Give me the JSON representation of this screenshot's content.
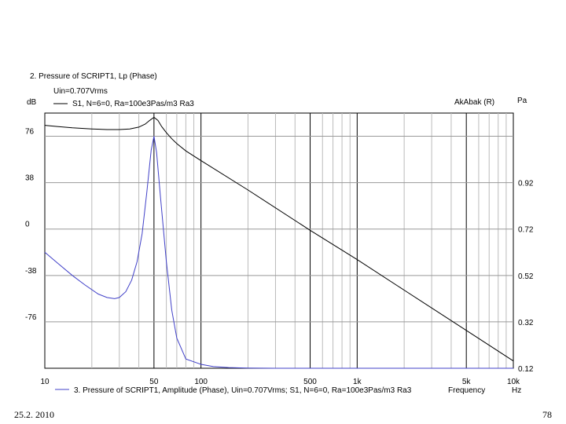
{
  "chart_data": {
    "type": "line",
    "title": "2. Pressure of SCRIPT1, Lp (Phase)",
    "subtitle": "Uin=0.707Vrms",
    "software_label": "AkAbak (R)",
    "xlabel": "Frequency",
    "xunit": "Hz",
    "x_scale": "log",
    "xlim": [
      10,
      10000
    ],
    "x_major_ticks": [
      {
        "value": 10,
        "label": "10"
      },
      {
        "value": 50,
        "label": "50"
      },
      {
        "value": 100,
        "label": "100"
      },
      {
        "value": 500,
        "label": "500"
      },
      {
        "value": 1000,
        "label": "1k"
      },
      {
        "value": 5000,
        "label": "5k"
      },
      {
        "value": 10000,
        "label": "10k"
      }
    ],
    "y_left": {
      "unit": "dB",
      "lim": [
        -114,
        95
      ],
      "ticks": [
        "76",
        "38",
        "0",
        "-38",
        "-76"
      ],
      "tick_values": [
        76,
        38,
        0,
        -38,
        -76
      ]
    },
    "y_right": {
      "unit": "Pa",
      "lim": [
        0.12,
        1.22
      ],
      "ticks": [
        "0.92",
        "0.72",
        "0.52",
        "0.32",
        "0.12"
      ],
      "tick_values": [
        0.92,
        0.72,
        0.52,
        0.32,
        0.12
      ]
    },
    "grid": true,
    "series": [
      {
        "name": "S1, N=6=0, Ra=100e3Pas/m3 Ra3",
        "axis": "left",
        "color": "#000000",
        "x": [
          10,
          12,
          15,
          20,
          25,
          30,
          35,
          40,
          44,
          47,
          50,
          53,
          56,
          60,
          65,
          70,
          80,
          100,
          200,
          500,
          1000,
          2000,
          5000,
          10000
        ],
        "y": [
          85,
          84,
          83,
          82,
          81.5,
          81.5,
          82,
          83.5,
          86,
          89,
          91.5,
          89,
          84,
          79,
          74,
          70,
          64,
          56,
          32,
          -1,
          -25,
          -50,
          -83,
          -108
        ]
      },
      {
        "name": "3. Pressure of SCRIPT1, Amplitude (Phase), Uin=0.707Vrms; S1, N=6=0, Ra=100e3Pas/m3 Ra3",
        "axis": "right",
        "color": "#4040c8",
        "x": [
          10,
          12,
          15,
          18,
          22,
          25,
          28,
          30,
          33,
          36,
          39,
          42,
          45,
          48,
          50,
          52,
          55,
          60,
          65,
          70,
          80,
          100,
          120,
          150,
          200,
          300,
          500,
          1000,
          2000,
          5000,
          10000
        ],
        "y": [
          0.62,
          0.575,
          0.52,
          0.48,
          0.44,
          0.425,
          0.42,
          0.425,
          0.45,
          0.5,
          0.58,
          0.7,
          0.88,
          1.06,
          1.12,
          1.05,
          0.86,
          0.58,
          0.37,
          0.25,
          0.16,
          0.137,
          0.127,
          0.123,
          0.121,
          0.12,
          0.12,
          0.12,
          0.12,
          0.12,
          0.12
        ]
      }
    ]
  },
  "footer": {
    "date": "25.2. 2010",
    "page_number": "78"
  }
}
